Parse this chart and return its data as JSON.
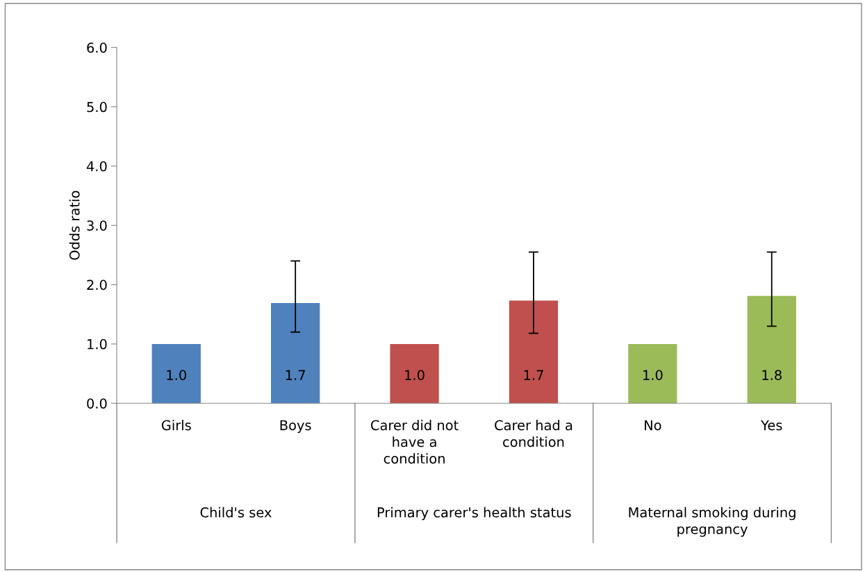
{
  "chart_data": {
    "type": "bar",
    "ylabel": "Odds ratio",
    "categories": [
      "Girls",
      "Boys",
      "Carer did not have a condition",
      "Carer had a condition",
      "No",
      "Yes"
    ],
    "values": [
      1.0,
      1.69,
      1.0,
      1.73,
      1.0,
      1.81
    ],
    "value_labels": [
      "1.0",
      "1.7",
      "1.0",
      "1.7",
      "1.0",
      "1.8"
    ],
    "colors": [
      "#4f81bd",
      "#4f81bd",
      "#c0504d",
      "#c0504d",
      "#9bbb59",
      "#9bbb59"
    ],
    "errors": [
      null,
      [
        1.2,
        2.4
      ],
      null,
      [
        1.18,
        2.55
      ],
      null,
      [
        1.3,
        2.55
      ]
    ],
    "annotations": [
      "Child's sex",
      "Primary carer's health status",
      "Maternal smoking during pregnancy"
    ],
    "ylim": [
      0,
      6
    ],
    "yticks": [
      {
        "value": 0,
        "label": "0.0"
      },
      {
        "value": 1,
        "label": "1.0"
      },
      {
        "value": 2,
        "label": "2.0"
      },
      {
        "value": 3,
        "label": "3.0"
      },
      {
        "value": 4,
        "label": "4.0"
      },
      {
        "value": 5,
        "label": "5.0"
      },
      {
        "value": 6,
        "label": "6.0"
      }
    ],
    "grid": false,
    "legend": false
  }
}
